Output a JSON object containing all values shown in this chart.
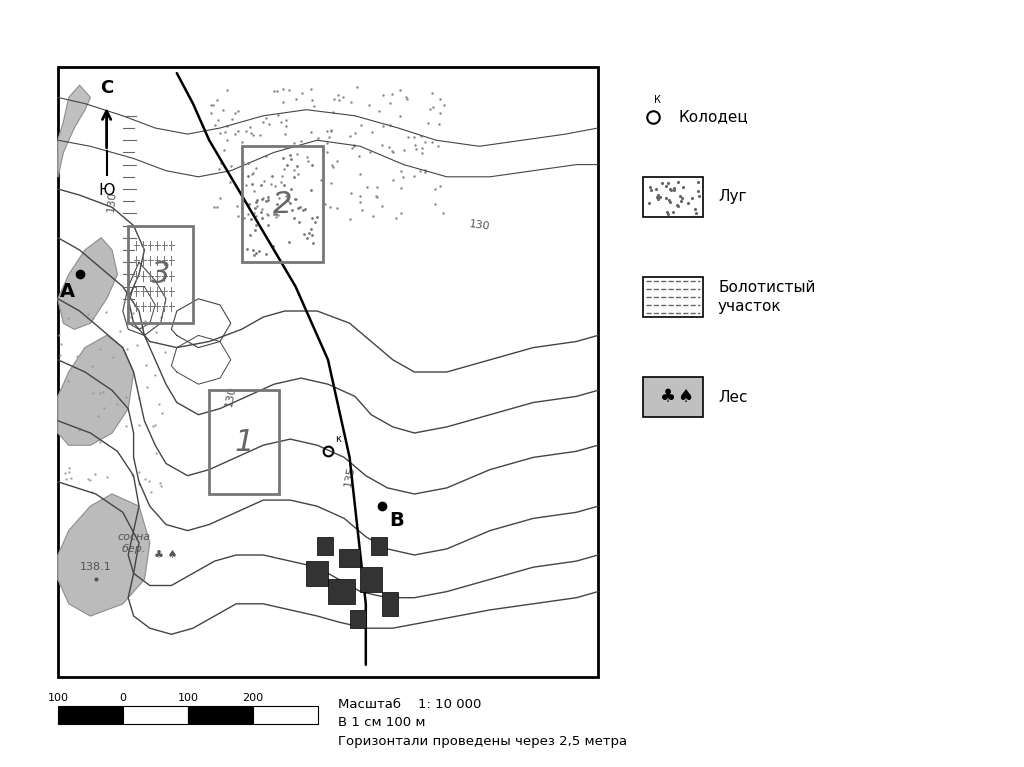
{
  "bg_color": "#ffffff",
  "contour_color": "#444444",
  "contour_lw": 1.0,
  "title_scale_text": "Масштаб    1: 10 000",
  "scale_line1": "В 1 см 100 м",
  "scale_line2": "Горизонтали проведены через 2,5 метра",
  "scale_numbers": [
    "100",
    "0",
    "100",
    "200"
  ],
  "compass_label_n": "С",
  "compass_label_s": "Ю",
  "legend_well_label": "Колодец",
  "legend_meadow_label": "Луг",
  "legend_swamp_label": "Болотистый\nучасток",
  "legend_forest_label": "Лес"
}
